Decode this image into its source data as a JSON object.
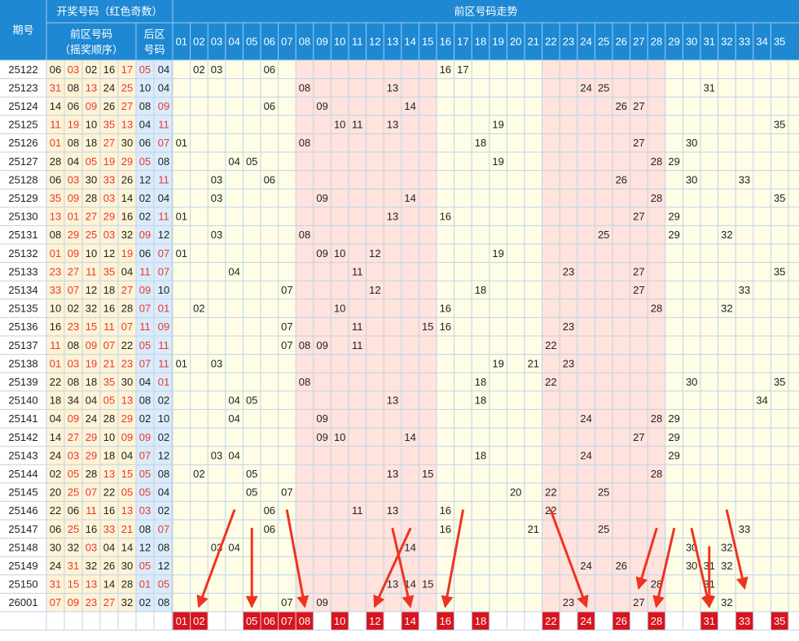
{
  "header": {
    "issue_label": "期号",
    "draw_title": "开奖号码（红色奇数）",
    "front_title_1": "前区号码",
    "front_title_2": "（摇奖顺序）",
    "back_title_1": "后区",
    "back_title_2": "号码",
    "trend_title": "前区号码走势"
  },
  "trend_columns": [
    "01",
    "02",
    "03",
    "04",
    "05",
    "06",
    "07",
    "08",
    "09",
    "10",
    "11",
    "12",
    "13",
    "14",
    "15",
    "16",
    "17",
    "18",
    "19",
    "20",
    "21",
    "22",
    "23",
    "24",
    "25",
    "26",
    "27",
    "28",
    "29",
    "30",
    "31",
    "32",
    "33",
    "34",
    "35"
  ],
  "shaded_columns": [
    "08",
    "09",
    "10",
    "11",
    "12",
    "13",
    "14",
    "15",
    "22",
    "23",
    "24",
    "25",
    "26",
    "27",
    "28"
  ],
  "rows": [
    {
      "issue": "25122",
      "front": [
        "06",
        "03",
        "02",
        "16",
        "17"
      ],
      "back": [
        "05",
        "04"
      ]
    },
    {
      "issue": "25123",
      "front": [
        "31",
        "08",
        "13",
        "24",
        "25"
      ],
      "back": [
        "10",
        "04"
      ]
    },
    {
      "issue": "25124",
      "front": [
        "14",
        "06",
        "09",
        "26",
        "27"
      ],
      "back": [
        "08",
        "09"
      ]
    },
    {
      "issue": "25125",
      "front": [
        "11",
        "19",
        "10",
        "35",
        "13"
      ],
      "back": [
        "04",
        "11"
      ]
    },
    {
      "issue": "25126",
      "front": [
        "01",
        "08",
        "18",
        "27",
        "30"
      ],
      "back": [
        "06",
        "07"
      ]
    },
    {
      "issue": "25127",
      "front": [
        "28",
        "04",
        "05",
        "19",
        "29"
      ],
      "back": [
        "05",
        "08"
      ]
    },
    {
      "issue": "25128",
      "front": [
        "06",
        "03",
        "30",
        "33",
        "26"
      ],
      "back": [
        "12",
        "11"
      ]
    },
    {
      "issue": "25129",
      "front": [
        "35",
        "09",
        "28",
        "03",
        "14"
      ],
      "back": [
        "02",
        "04"
      ]
    },
    {
      "issue": "25130",
      "front": [
        "13",
        "01",
        "27",
        "29",
        "16"
      ],
      "back": [
        "02",
        "11"
      ]
    },
    {
      "issue": "25131",
      "front": [
        "08",
        "29",
        "25",
        "03",
        "32"
      ],
      "back": [
        "09",
        "12"
      ]
    },
    {
      "issue": "25132",
      "front": [
        "01",
        "09",
        "10",
        "12",
        "19"
      ],
      "back": [
        "06",
        "07"
      ]
    },
    {
      "issue": "25133",
      "front": [
        "23",
        "27",
        "11",
        "35",
        "04"
      ],
      "back": [
        "11",
        "07"
      ]
    },
    {
      "issue": "25134",
      "front": [
        "33",
        "07",
        "12",
        "18",
        "27"
      ],
      "back": [
        "09",
        "10"
      ]
    },
    {
      "issue": "25135",
      "front": [
        "10",
        "02",
        "32",
        "16",
        "28"
      ],
      "back": [
        "07",
        "01"
      ]
    },
    {
      "issue": "25136",
      "front": [
        "16",
        "23",
        "15",
        "11",
        "07"
      ],
      "back": [
        "11",
        "09"
      ]
    },
    {
      "issue": "25137",
      "front": [
        "11",
        "08",
        "09",
        "07",
        "22"
      ],
      "back": [
        "05",
        "11"
      ]
    },
    {
      "issue": "25138",
      "front": [
        "01",
        "03",
        "19",
        "21",
        "23"
      ],
      "back": [
        "07",
        "11"
      ]
    },
    {
      "issue": "25139",
      "front": [
        "22",
        "08",
        "18",
        "35",
        "30"
      ],
      "back": [
        "04",
        "01"
      ]
    },
    {
      "issue": "25140",
      "front": [
        "18",
        "34",
        "04",
        "05",
        "13"
      ],
      "back": [
        "08",
        "02"
      ]
    },
    {
      "issue": "25141",
      "front": [
        "04",
        "09",
        "24",
        "28",
        "29"
      ],
      "back": [
        "02",
        "10"
      ]
    },
    {
      "issue": "25142",
      "front": [
        "14",
        "27",
        "29",
        "10",
        "09"
      ],
      "back": [
        "09",
        "02"
      ]
    },
    {
      "issue": "25143",
      "front": [
        "24",
        "03",
        "29",
        "18",
        "04"
      ],
      "back": [
        "07",
        "12"
      ]
    },
    {
      "issue": "25144",
      "front": [
        "02",
        "05",
        "28",
        "13",
        "15"
      ],
      "back": [
        "05",
        "08"
      ]
    },
    {
      "issue": "25145",
      "front": [
        "20",
        "25",
        "07",
        "22",
        "05"
      ],
      "back": [
        "05",
        "04"
      ]
    },
    {
      "issue": "25146",
      "front": [
        "22",
        "06",
        "11",
        "16",
        "13"
      ],
      "back": [
        "03",
        "02"
      ]
    },
    {
      "issue": "25147",
      "front": [
        "06",
        "25",
        "16",
        "33",
        "21"
      ],
      "back": [
        "08",
        "07"
      ]
    },
    {
      "issue": "25148",
      "front": [
        "30",
        "32",
        "03",
        "04",
        "14"
      ],
      "back": [
        "12",
        "08"
      ]
    },
    {
      "issue": "25149",
      "front": [
        "24",
        "31",
        "32",
        "26",
        "30"
      ],
      "back": [
        "05",
        "12"
      ]
    },
    {
      "issue": "25150",
      "front": [
        "31",
        "15",
        "13",
        "14",
        "28"
      ],
      "back": [
        "01",
        "05"
      ]
    },
    {
      "issue": "26001",
      "front": [
        "07",
        "09",
        "23",
        "27",
        "32"
      ],
      "back": [
        "02",
        "08"
      ]
    }
  ],
  "selected_numbers": [
    "01",
    "02",
    "05",
    "06",
    "07",
    "08",
    "10",
    "12",
    "14",
    "16",
    "18",
    "22",
    "24",
    "26",
    "28",
    "31",
    "33",
    "35"
  ],
  "arrows": [
    {
      "from_col": "04",
      "from_row": "25146",
      "to_col": "02",
      "to_row": "26001"
    },
    {
      "from_col": "05",
      "from_row": "25147",
      "to_col": "05",
      "to_row": "26001"
    },
    {
      "from_col": "07",
      "from_row": "25146",
      "to_col": "08",
      "to_row": "26001"
    },
    {
      "from_col": "14",
      "from_row": "25147",
      "to_col": "12",
      "to_row": "26001"
    },
    {
      "from_col": "13",
      "from_row": "25147",
      "to_col": "14",
      "to_row": "26001"
    },
    {
      "from_col": "17",
      "from_row": "25146",
      "to_col": "16",
      "to_row": "26001"
    },
    {
      "from_col": "22",
      "from_row": "25146",
      "to_col": "24",
      "to_row": "26001"
    },
    {
      "from_col": "28",
      "from_row": "25147",
      "to_col": "27",
      "to_row": "25150"
    },
    {
      "from_col": "29",
      "from_row": "25147",
      "to_col": "28",
      "to_row": "26001"
    },
    {
      "from_col": "30",
      "from_row": "25147",
      "to_col": "31",
      "to_row": "26001"
    },
    {
      "from_col": "32",
      "from_row": "25146",
      "to_col": "33",
      "to_row": "25150"
    },
    {
      "from_col": "31",
      "from_row": "25148",
      "to_col": "31",
      "to_row": "26001"
    }
  ],
  "colors": {
    "header_bg": "#1e88d3",
    "header_text": "#ffffff",
    "odd_red": "#e53935",
    "even_text": "#222222",
    "front_bg": "#fff3d6",
    "back_bg": "#dcebfa",
    "trend_bg": "#fffde6",
    "shaded_bg": "#ffe3dc",
    "grid": "#bcd3e8",
    "marker_bg": "#d8141e",
    "arrow": "#ee3322"
  }
}
